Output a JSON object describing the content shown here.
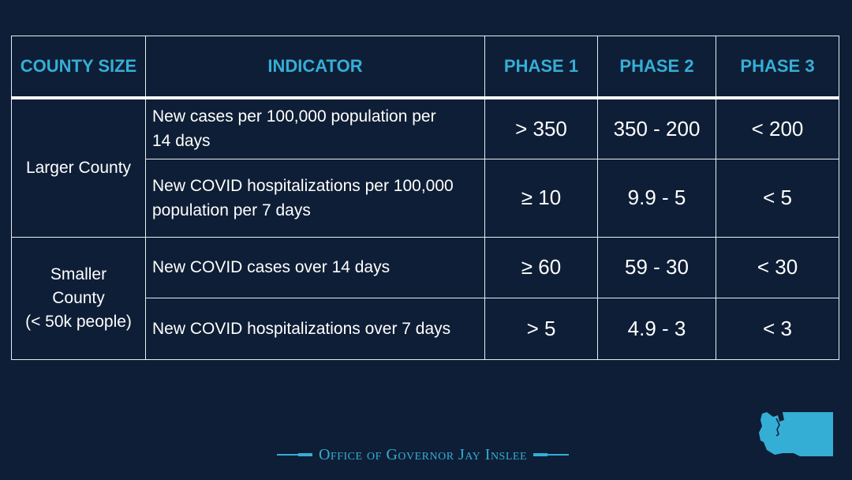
{
  "table": {
    "headers": [
      "COUNTY SIZE",
      "INDICATOR",
      "PHASE 1",
      "PHASE 2",
      "PHASE 3"
    ],
    "groups": [
      {
        "county": [
          "Larger County"
        ],
        "rows": [
          {
            "indicator": [
              "New cases per 100,000 population per",
              "14 days"
            ],
            "phase1": "> 350",
            "phase2": "350 - 200",
            "phase3": "< 200"
          },
          {
            "indicator": [
              "New COVID hospitalizations per 100,000",
              "population per 7 days"
            ],
            "phase1": "≥ 10",
            "phase2": "9.9 - 5",
            "phase3": "< 5"
          }
        ]
      },
      {
        "county": [
          "Smaller",
          "County",
          "(< 50k people)"
        ],
        "rows": [
          {
            "indicator": [
              "New COVID cases over 14 days"
            ],
            "phase1": "≥ 60",
            "phase2": "59 - 30",
            "phase3": "< 30"
          },
          {
            "indicator": [
              "New COVID hospitalizations over 7 days"
            ],
            "phase1": "> 5",
            "phase2": "4.9 - 3",
            "phase3": "< 3"
          }
        ]
      }
    ]
  },
  "footer": {
    "text": "Office of Governor Jay Inslee"
  },
  "colors": {
    "background": "#0e1e36",
    "accent": "#35aed6",
    "text": "#ffffff"
  },
  "icons": {
    "state_logo": "washington-state-icon"
  }
}
